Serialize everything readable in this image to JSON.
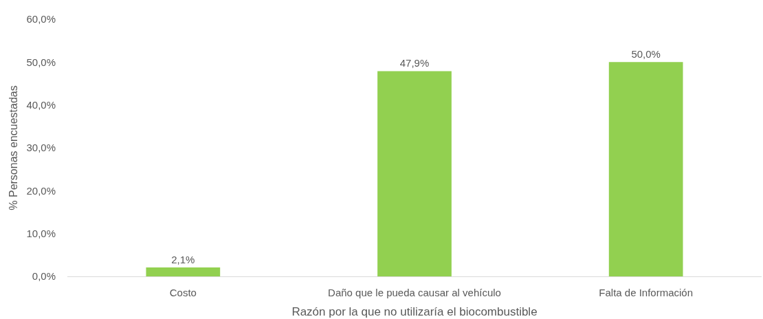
{
  "chart_data": {
    "type": "bar",
    "xlabel": "Razón por la que no utilizaría el biocombustible",
    "ylabel": "% Personas encuestadas",
    "categories": [
      "Costo",
      "Daño que le pueda causar al vehículo",
      "Falta de Información"
    ],
    "values": [
      2.1,
      47.9,
      50.0
    ],
    "value_labels": [
      "2,1%",
      "47,9%",
      "50,0%"
    ],
    "color": "#92d050",
    "ylim": [
      0,
      60
    ],
    "yticks": [
      {
        "value": 0,
        "label": "0,0%"
      },
      {
        "value": 10,
        "label": "10,0%"
      },
      {
        "value": 20,
        "label": "20,0%"
      },
      {
        "value": 30,
        "label": "30,0%"
      },
      {
        "value": 40,
        "label": "40,0%"
      },
      {
        "value": 50,
        "label": "50,0%"
      },
      {
        "value": 60,
        "label": "60,0%"
      }
    ]
  }
}
